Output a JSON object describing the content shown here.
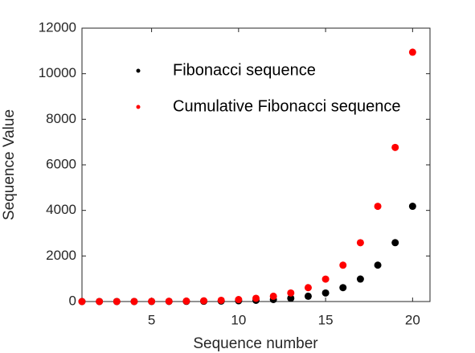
{
  "chart_data": {
    "type": "scatter",
    "xlabel": "Sequence number",
    "ylabel": "Sequence Value",
    "x": [
      1,
      2,
      3,
      4,
      5,
      6,
      7,
      8,
      9,
      10,
      11,
      12,
      13,
      14,
      15,
      16,
      17,
      18,
      19,
      20
    ],
    "series": [
      {
        "name": "Fibonacci sequence",
        "color": "#000000",
        "values": [
          0,
          1,
          1,
          2,
          3,
          5,
          8,
          13,
          21,
          34,
          55,
          89,
          144,
          233,
          377,
          610,
          987,
          1597,
          2584,
          4181
        ]
      },
      {
        "name": "Cumulative Fibonacci sequence",
        "color": "#ff0000",
        "values": [
          0,
          1,
          2,
          4,
          7,
          12,
          20,
          33,
          54,
          88,
          143,
          232,
          376,
          609,
          986,
          1596,
          2583,
          4180,
          6764,
          10945
        ]
      }
    ],
    "xlim": [
      1,
      21
    ],
    "xticks": [
      5,
      10,
      15,
      20
    ],
    "ylim": [
      0,
      12000
    ],
    "yticks": [
      0,
      2000,
      4000,
      6000,
      8000,
      10000,
      12000
    ],
    "grid": false
  }
}
